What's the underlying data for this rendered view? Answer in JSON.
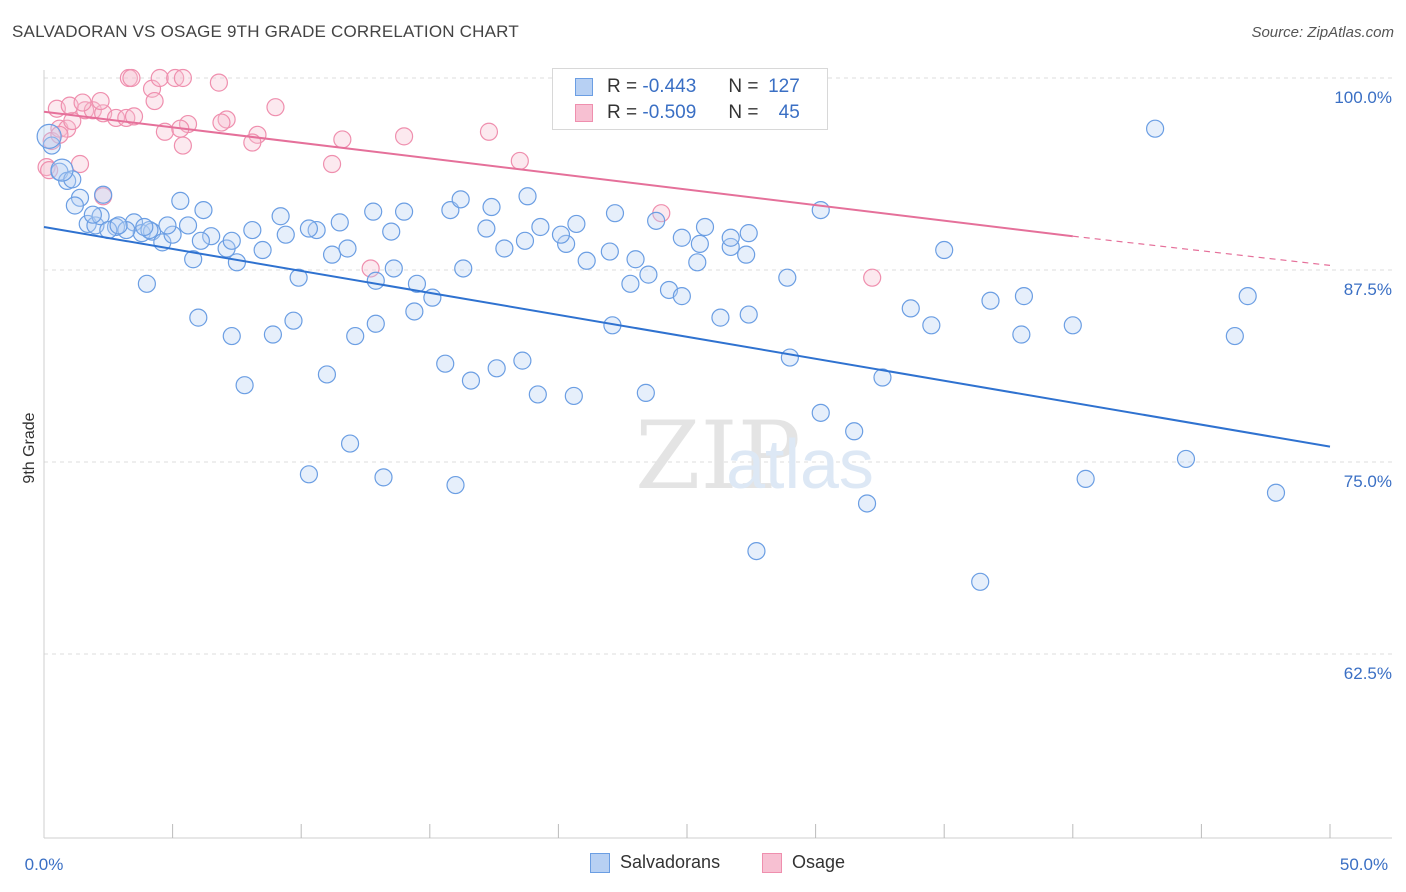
{
  "header": {
    "title": "SALVADORAN VS OSAGE 9TH GRADE CORRELATION CHART",
    "source": "Source: ZipAtlas.com"
  },
  "colors": {
    "blue": "#6b9ee3",
    "blue_fill": "#b7d0f3",
    "blue_line": "#2f72d0",
    "pink": "#ef8fae",
    "pink_fill": "#f7c0d2",
    "pink_line": "#e5709a",
    "axis_text": "#3a6fc4",
    "grid": "#dcdcdc"
  },
  "legend": {
    "r_label": "R =",
    "n_label": "N =",
    "rows": [
      {
        "r": "-0.443",
        "n": "127",
        "color": "blue"
      },
      {
        "r": "-0.509",
        "n": "45",
        "color": "pink"
      }
    ]
  },
  "chart_data": {
    "type": "scatter",
    "title": "SALVADORAN VS OSAGE 9TH GRADE CORRELATION CHART",
    "xlabel": "",
    "ylabel": "9th Grade",
    "xlim": [
      0,
      50
    ],
    "ylim": [
      50.5,
      101
    ],
    "x_tick_labels": [
      "0.0%",
      "50.0%"
    ],
    "y_ticks": [
      100,
      87.5,
      75,
      62.5
    ],
    "y_tick_labels": [
      "100.0%",
      "87.5%",
      "75.0%",
      "62.5%"
    ],
    "watermark": "ZIPatlas",
    "legend_placement": "top-center",
    "series": [
      {
        "name": "Salvadorans",
        "color": "#6b9ee3",
        "trend": {
          "x0": 0,
          "y0": 90.3,
          "x1": 50,
          "y1": 76.0
        },
        "points": [
          [
            0.3,
            95.6
          ],
          [
            0.6,
            93.9
          ],
          [
            0.9,
            93.3
          ],
          [
            1.1,
            93.4
          ],
          [
            1.4,
            92.2
          ],
          [
            1.7,
            90.5
          ],
          [
            2.0,
            90.4
          ],
          [
            2.8,
            90.3
          ],
          [
            2.2,
            91.0
          ],
          [
            3.5,
            90.6
          ],
          [
            3.8,
            89.9
          ],
          [
            4.2,
            90.0
          ],
          [
            4.6,
            89.3
          ],
          [
            5.3,
            92.0
          ],
          [
            5.8,
            88.2
          ],
          [
            6.5,
            89.7
          ],
          [
            7.1,
            88.9
          ],
          [
            7.5,
            88.0
          ],
          [
            8.5,
            88.8
          ],
          [
            9.9,
            87.0
          ],
          [
            10.6,
            90.1
          ],
          [
            11.2,
            88.5
          ],
          [
            11.8,
            88.9
          ],
          [
            12.9,
            86.8
          ],
          [
            13.6,
            87.6
          ],
          [
            14.5,
            86.6
          ],
          [
            15.1,
            85.7
          ],
          [
            16.3,
            87.6
          ],
          [
            17.2,
            90.2
          ],
          [
            17.9,
            88.9
          ],
          [
            18.7,
            89.4
          ],
          [
            19.3,
            90.3
          ],
          [
            20.3,
            89.2
          ],
          [
            21.1,
            88.1
          ],
          [
            22.0,
            88.7
          ],
          [
            22.8,
            86.6
          ],
          [
            23.5,
            87.2
          ],
          [
            24.3,
            86.2
          ],
          [
            25.5,
            89.2
          ],
          [
            26.7,
            89.0
          ],
          [
            27.3,
            88.5
          ],
          [
            28.9,
            87.0
          ],
          [
            5.0,
            89.8
          ],
          [
            4.1,
            90.1
          ],
          [
            3.2,
            90.1
          ],
          [
            2.5,
            90.1
          ],
          [
            1.9,
            91.1
          ],
          [
            2.9,
            90.4
          ],
          [
            4.8,
            90.4
          ],
          [
            6.2,
            91.4
          ],
          [
            9.2,
            91.0
          ],
          [
            11.5,
            90.6
          ],
          [
            13.5,
            90.0
          ],
          [
            15.8,
            91.4
          ],
          [
            17.4,
            91.6
          ],
          [
            18.8,
            92.3
          ],
          [
            20.7,
            90.5
          ],
          [
            22.2,
            91.2
          ],
          [
            23.8,
            90.7
          ],
          [
            25.7,
            90.3
          ],
          [
            27.4,
            89.9
          ],
          [
            24.8,
            89.6
          ],
          [
            16.2,
            92.1
          ],
          [
            14.0,
            91.3
          ],
          [
            12.8,
            91.3
          ],
          [
            10.3,
            90.2
          ],
          [
            9.4,
            89.8
          ],
          [
            8.1,
            90.1
          ],
          [
            7.3,
            89.4
          ],
          [
            6.1,
            89.4
          ],
          [
            3.9,
            90.3
          ],
          [
            2.3,
            92.4
          ],
          [
            1.2,
            91.7
          ],
          [
            5.6,
            90.4
          ],
          [
            4.0,
            86.6
          ],
          [
            6.0,
            84.4
          ],
          [
            7.3,
            83.2
          ],
          [
            7.8,
            80.0
          ],
          [
            8.9,
            83.3
          ],
          [
            9.7,
            84.2
          ],
          [
            11.0,
            80.7
          ],
          [
            12.1,
            83.2
          ],
          [
            12.9,
            84.0
          ],
          [
            14.4,
            84.8
          ],
          [
            15.6,
            81.4
          ],
          [
            16.6,
            80.3
          ],
          [
            17.6,
            81.1
          ],
          [
            18.6,
            81.6
          ],
          [
            19.2,
            79.4
          ],
          [
            20.6,
            79.3
          ],
          [
            22.1,
            83.9
          ],
          [
            23.4,
            79.5
          ],
          [
            24.8,
            85.8
          ],
          [
            26.3,
            84.4
          ],
          [
            27.4,
            84.6
          ],
          [
            29.0,
            81.8
          ],
          [
            30.2,
            78.2
          ],
          [
            31.5,
            77.0
          ],
          [
            32.6,
            80.5
          ],
          [
            34.5,
            83.9
          ],
          [
            36.8,
            85.5
          ],
          [
            38.1,
            85.8
          ],
          [
            38.0,
            83.3
          ],
          [
            40.0,
            83.9
          ],
          [
            40.5,
            73.9
          ],
          [
            44.4,
            75.2
          ],
          [
            46.3,
            83.2
          ],
          [
            46.8,
            85.8
          ],
          [
            47.9,
            73.0
          ],
          [
            43.2,
            96.7
          ],
          [
            33.7,
            85.0
          ],
          [
            30.2,
            91.4
          ],
          [
            35.0,
            88.8
          ],
          [
            26.7,
            89.6
          ],
          [
            25.4,
            88.0
          ],
          [
            23.0,
            88.2
          ],
          [
            20.1,
            89.8
          ],
          [
            36.4,
            67.2
          ],
          [
            27.7,
            69.2
          ],
          [
            32.0,
            72.3
          ],
          [
            10.3,
            74.2
          ],
          [
            11.9,
            76.2
          ],
          [
            13.2,
            74.0
          ],
          [
            16.0,
            73.5
          ]
        ]
      },
      {
        "name": "Osage",
        "color": "#ef8fae",
        "trend": {
          "x0": 0,
          "y0": 97.8,
          "x1": 40,
          "y1": 89.7
        },
        "trend_dashed_to": {
          "x": 50,
          "y": 87.8
        },
        "points": [
          [
            0.1,
            94.2
          ],
          [
            0.3,
            95.9
          ],
          [
            0.6,
            96.7
          ],
          [
            0.9,
            96.7
          ],
          [
            1.1,
            97.2
          ],
          [
            1.6,
            97.9
          ],
          [
            1.9,
            97.9
          ],
          [
            2.3,
            97.7
          ],
          [
            2.8,
            97.4
          ],
          [
            3.2,
            97.4
          ],
          [
            3.5,
            97.5
          ],
          [
            0.5,
            98.0
          ],
          [
            1.0,
            98.2
          ],
          [
            1.5,
            98.4
          ],
          [
            2.2,
            98.5
          ],
          [
            3.3,
            100.0
          ],
          [
            3.4,
            100.0
          ],
          [
            4.2,
            99.3
          ],
          [
            4.5,
            100.0
          ],
          [
            5.1,
            100.0
          ],
          [
            5.4,
            100.0
          ],
          [
            6.8,
            99.7
          ],
          [
            4.3,
            98.5
          ],
          [
            9.0,
            98.1
          ],
          [
            7.1,
            97.3
          ],
          [
            5.6,
            97.0
          ],
          [
            6.9,
            97.1
          ],
          [
            8.3,
            96.3
          ],
          [
            5.4,
            95.6
          ],
          [
            4.7,
            96.5
          ],
          [
            5.3,
            96.7
          ],
          [
            8.1,
            95.8
          ],
          [
            11.6,
            96.0
          ],
          [
            14.0,
            96.2
          ],
          [
            17.3,
            96.5
          ],
          [
            18.5,
            94.6
          ],
          [
            11.2,
            94.4
          ],
          [
            23.2,
            100.0
          ],
          [
            1.4,
            94.4
          ],
          [
            2.3,
            92.3
          ],
          [
            24.0,
            91.2
          ],
          [
            32.2,
            87.0
          ],
          [
            12.7,
            87.6
          ],
          [
            0.2,
            94.0
          ],
          [
            0.6,
            96.3
          ]
        ]
      }
    ]
  },
  "bottom_legend": [
    {
      "label": "Salvadorans",
      "color": "blue"
    },
    {
      "label": "Osage",
      "color": "pink"
    }
  ]
}
